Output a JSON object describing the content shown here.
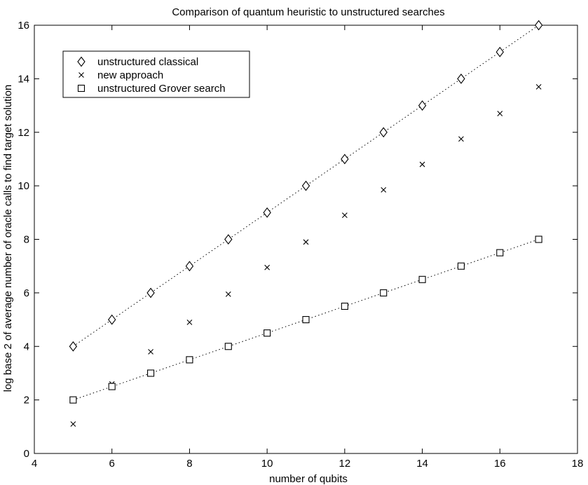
{
  "chart_data": {
    "type": "scatter",
    "title": "Comparison of quantum heuristic to unstructured searches",
    "xlabel": "number of qubits",
    "ylabel": "log base 2 of average number of oracle calls to find target solution",
    "xlim": [
      4,
      18
    ],
    "ylim": [
      0,
      16
    ],
    "xticks": [
      4,
      6,
      8,
      10,
      12,
      14,
      16,
      18
    ],
    "yticks": [
      0,
      2,
      4,
      6,
      8,
      10,
      12,
      14,
      16
    ],
    "grid": false,
    "legend_position": "top-left",
    "series": [
      {
        "name": "unstructured classical",
        "marker": "diamond",
        "fit_line": "dotted",
        "x": [
          5,
          6,
          7,
          8,
          9,
          10,
          11,
          12,
          13,
          14,
          15,
          16,
          17
        ],
        "y": [
          4,
          5,
          6,
          7,
          8,
          9,
          10,
          11,
          12,
          13,
          14,
          15,
          16
        ]
      },
      {
        "name": "new approach",
        "marker": "x",
        "x": [
          5,
          6,
          7,
          8,
          9,
          10,
          11,
          12,
          13,
          14,
          15,
          16,
          17
        ],
        "y": [
          1.1,
          2.6,
          3.8,
          4.9,
          5.95,
          6.95,
          7.9,
          8.9,
          9.85,
          10.8,
          11.75,
          12.7,
          13.7
        ]
      },
      {
        "name": "unstructured Grover search",
        "marker": "square",
        "fit_line": "dotted",
        "x": [
          5,
          6,
          7,
          8,
          9,
          10,
          11,
          12,
          13,
          14,
          15,
          16,
          17
        ],
        "y": [
          2,
          2.5,
          3,
          3.5,
          4,
          4.5,
          5,
          5.5,
          6,
          6.5,
          7,
          7.5,
          8
        ]
      }
    ]
  }
}
